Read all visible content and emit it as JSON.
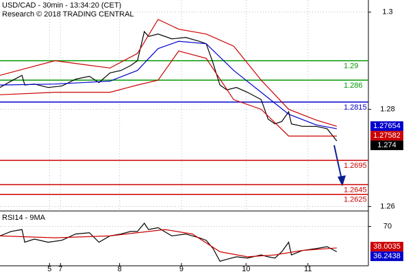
{
  "chart_data": {
    "type": "line",
    "title": "USD/CAD - 30min - 13:34:20 (CET)",
    "subtitle": "Research © 2018 TRADING CENTRAL",
    "xlim": [
      0,
      268
    ],
    "xticks": [
      {
        "value": 36,
        "label": "5"
      },
      {
        "value": 44,
        "label": "7"
      },
      {
        "value": 87,
        "label": "8"
      },
      {
        "value": 132,
        "label": "9"
      },
      {
        "value": 179,
        "label": "10"
      },
      {
        "value": 224,
        "label": "11"
      }
    ],
    "ylim": [
      1.2595,
      1.3025
    ],
    "yticks": [
      1.26,
      1.28,
      1.3
    ],
    "grid": true,
    "series": [
      {
        "color": "#000000",
        "x": [
          0,
          8,
          16,
          18,
          25,
          35,
          45,
          55,
          65,
          72,
          80,
          88,
          95,
          100,
          105,
          108,
          115,
          125,
          135,
          145,
          150,
          155,
          160,
          165,
          172,
          180,
          190,
          195,
          200,
          205,
          210,
          212,
          220,
          230,
          238,
          245
        ],
        "values": [
          1.2845,
          1.2858,
          1.287,
          1.285,
          1.2852,
          1.2845,
          1.2848,
          1.2862,
          1.2868,
          1.2855,
          1.2875,
          1.288,
          1.289,
          1.29,
          1.296,
          1.295,
          1.2955,
          1.2945,
          1.2948,
          1.294,
          1.2935,
          1.2895,
          1.285,
          1.284,
          1.2845,
          1.2835,
          1.282,
          1.278,
          1.277,
          1.2775,
          1.2795,
          1.277,
          1.2765,
          1.2765,
          1.276,
          1.2735
        ]
      },
      {
        "color": "#0000cc",
        "x": [
          0,
          40,
          80,
          100,
          115,
          130,
          150,
          170,
          190,
          210,
          230,
          245
        ],
        "values": [
          1.285,
          1.2852,
          1.2858,
          1.288,
          1.2925,
          1.294,
          1.2935,
          1.288,
          1.2835,
          1.279,
          1.2768,
          1.276
        ]
      },
      {
        "color": "#cc0000",
        "x": [
          0,
          40,
          80,
          100,
          115,
          130,
          150,
          170,
          190,
          210,
          230,
          245
        ],
        "values": [
          1.287,
          1.29,
          1.2885,
          1.2915,
          1.2985,
          1.2965,
          1.2955,
          1.293,
          1.286,
          1.28,
          1.2778,
          1.2765
        ]
      },
      {
        "color": "#cc0000",
        "x": [
          0,
          40,
          80,
          100,
          115,
          130,
          150,
          170,
          190,
          210,
          230,
          245
        ],
        "values": [
          1.283,
          1.2835,
          1.2835,
          1.285,
          1.286,
          1.292,
          1.2905,
          1.282,
          1.28,
          1.2745,
          1.2745,
          1.2745
        ]
      }
    ],
    "levels": [
      {
        "value": 1.29,
        "color": "#009900"
      },
      {
        "value": 1.286,
        "color": "#009900"
      },
      {
        "value": 1.2815,
        "color": "#0000cc"
      },
      {
        "value": 1.2695,
        "color": "#cc0000"
      },
      {
        "value": 1.2645,
        "color": "#cc0000"
      },
      {
        "value": 1.2625,
        "color": "#cc0000"
      }
    ],
    "price_tags": [
      {
        "value": 1.27654,
        "color": "#0000cc"
      },
      {
        "value": 1.27582,
        "color": "#cc0000"
      },
      {
        "value": 1.274,
        "color": "#000000"
      }
    ],
    "rsi": {
      "title": "RSI14 - 9MA",
      "ylim": [
        10,
        90
      ],
      "yticks": [
        70
      ],
      "series": [
        {
          "color": "#000000",
          "x": [
            0,
            8,
            16,
            18,
            25,
            35,
            45,
            55,
            65,
            72,
            80,
            88,
            95,
            100,
            105,
            108,
            115,
            125,
            135,
            145,
            150,
            155,
            160,
            165,
            172,
            180,
            190,
            195,
            200,
            205,
            210,
            212,
            220,
            230,
            238,
            245
          ],
          "values": [
            55,
            62,
            65,
            45,
            50,
            45,
            48,
            58,
            60,
            45,
            55,
            58,
            62,
            62,
            75,
            65,
            68,
            55,
            58,
            52,
            48,
            35,
            15,
            18,
            22,
            20,
            25,
            22,
            20,
            30,
            45,
            25,
            32,
            35,
            38,
            30
          ]
        },
        {
          "color": "#cc0000",
          "x": [
            0,
            40,
            80,
            100,
            120,
            140,
            160,
            180,
            200,
            220,
            245
          ],
          "values": [
            55,
            52,
            55,
            60,
            65,
            58,
            30,
            22,
            25,
            32,
            36
          ]
        }
      ],
      "tags": [
        {
          "value": 38.0035,
          "color": "#cc0000"
        },
        {
          "value": 36.2438,
          "color": "#0000cc"
        }
      ]
    }
  }
}
